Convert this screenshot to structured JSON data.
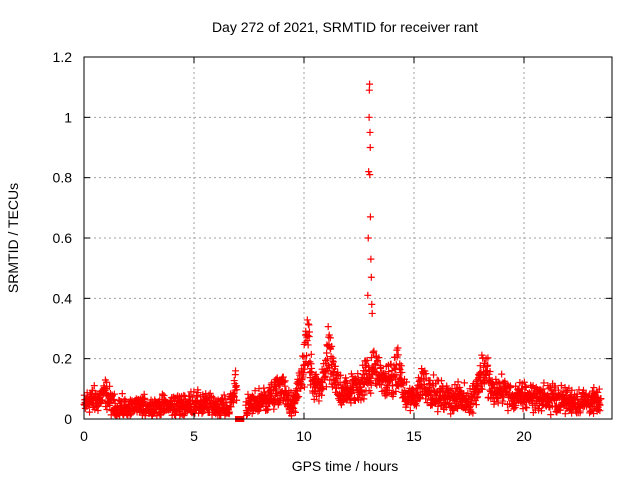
{
  "chart_data": {
    "type": "scatter",
    "title": "Day 272 of 2021, SRMTID for receiver rant",
    "xlabel": "GPS time / hours",
    "ylabel": "SRMTID / TECUs",
    "xlim": [
      0,
      24
    ],
    "ylim": [
      0,
      1.2
    ],
    "xticks": [
      0,
      5,
      10,
      15,
      20
    ],
    "xtick_labels": [
      "0",
      "5",
      "10",
      "15",
      "20"
    ],
    "yticks": [
      0,
      0.2,
      0.4,
      0.6,
      0.8,
      1,
      1.2
    ],
    "ytick_labels": [
      "0",
      "0.2",
      "0.4",
      "0.6",
      "0.8",
      "1",
      "1.2"
    ],
    "grid": true,
    "marker": "plus",
    "color": "#ff0000",
    "series": [
      {
        "name": "SRMTID",
        "envelope": [
          [
            0.0,
            0.05
          ],
          [
            0.3,
            0.08
          ],
          [
            0.6,
            0.07
          ],
          [
            1.0,
            0.1
          ],
          [
            1.3,
            0.05
          ],
          [
            2.0,
            0.04
          ],
          [
            3.0,
            0.05
          ],
          [
            4.0,
            0.05
          ],
          [
            5.0,
            0.06
          ],
          [
            6.0,
            0.05
          ],
          [
            6.6,
            0.04
          ],
          [
            6.9,
            0.14
          ],
          [
            7.2,
            0.04
          ],
          [
            8.0,
            0.07
          ],
          [
            8.6,
            0.09
          ],
          [
            9.0,
            0.12
          ],
          [
            9.5,
            0.04
          ],
          [
            10.0,
            0.2
          ],
          [
            10.2,
            0.3
          ],
          [
            10.4,
            0.12
          ],
          [
            10.8,
            0.12
          ],
          [
            11.1,
            0.25
          ],
          [
            11.4,
            0.15
          ],
          [
            11.8,
            0.1
          ],
          [
            12.3,
            0.12
          ],
          [
            12.7,
            0.15
          ],
          [
            13.2,
            0.2
          ],
          [
            13.6,
            0.15
          ],
          [
            14.0,
            0.15
          ],
          [
            14.3,
            0.2
          ],
          [
            14.6,
            0.08
          ],
          [
            15.0,
            0.08
          ],
          [
            15.4,
            0.15
          ],
          [
            16.0,
            0.09
          ],
          [
            17.0,
            0.08
          ],
          [
            17.6,
            0.07
          ],
          [
            18.2,
            0.2
          ],
          [
            18.6,
            0.1
          ],
          [
            19.0,
            0.12
          ],
          [
            19.5,
            0.08
          ],
          [
            20.0,
            0.09
          ],
          [
            21.0,
            0.08
          ],
          [
            22.0,
            0.07
          ],
          [
            23.0,
            0.07
          ],
          [
            23.5,
            0.06
          ]
        ],
        "spike": [
          [
            12.9,
            0.41
          ],
          [
            12.92,
            0.6
          ],
          [
            12.94,
            0.82
          ],
          [
            12.96,
            1.0
          ],
          [
            12.97,
            1.09
          ],
          [
            12.98,
            1.11
          ],
          [
            12.99,
            0.81
          ],
          [
            13.0,
            0.95
          ],
          [
            13.01,
            0.9
          ],
          [
            13.02,
            0.67
          ],
          [
            13.04,
            0.53
          ],
          [
            13.06,
            0.47
          ],
          [
            13.08,
            0.38
          ],
          [
            13.1,
            0.35
          ]
        ],
        "outliers": [
          [
            7.0,
            0.0
          ],
          [
            7.15,
            0.0
          ]
        ]
      }
    ]
  }
}
